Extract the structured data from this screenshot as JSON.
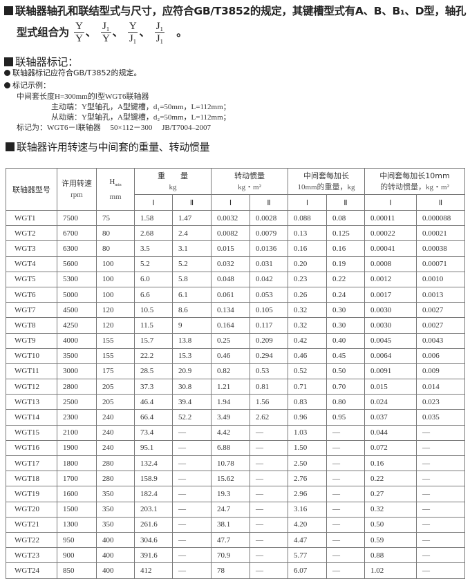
{
  "intro": {
    "line1": "联轴器轴孔和联结型式与尺寸，应符合GB/T3852的规定，其键槽型式有A、B、B₁、D型，轴孔",
    "line2_prefix": "型式组合为",
    "fractions": [
      {
        "num": "Y",
        "den": "Y"
      },
      {
        "num": "J₁",
        "den": "Y"
      },
      {
        "num": "Y",
        "den": "J₁"
      },
      {
        "num": "J₁",
        "den": "J₁"
      }
    ],
    "separator": "、",
    "line2_suffix": "。"
  },
  "marking": {
    "title": "联轴器标记：",
    "bullet1": "联轴器标记应符合GB/T3852的规定。",
    "bullet2": "标记示例：",
    "example_line1": "中间套长度H=300mm的Ⅰ型WGT6联轴器",
    "example_line2": "主动端：Y型轴孔，A型键槽，d₁=50mm，L=112mm；",
    "example_line3": "从动端：Y型轴孔，A型键槽，d₂=50mm，L=112mm；",
    "example_line4": "标记为：WGT6－Ⅰ联轴器　 50×112－300　 JB/T7004–2007"
  },
  "table_section": {
    "title": "联轴器许用转速与中间套的重量、转动惯量",
    "headers": {
      "model": "联轴器型号",
      "speed": "许用转速",
      "speed_unit": "rpm",
      "hmin": "H",
      "hmin_sub": "min",
      "hmin_unit": "mm",
      "weight": "重　　量",
      "weight_unit": "kg",
      "inertia": "转动惯量",
      "inertia_unit": "kg・m²",
      "w10": "中间套每加长",
      "w10_unit": "10mm的重量，kg",
      "i10": "中间套每加长10mm",
      "i10_unit": "的转动惯量，kg・m²",
      "type1": "Ⅰ",
      "type2": "Ⅱ"
    },
    "rows": [
      [
        "WGT1",
        "7500",
        "75",
        "1.58",
        "1.47",
        "0.0032",
        "0.0028",
        "0.088",
        "0.08",
        "0.00011",
        "0.000088"
      ],
      [
        "WGT2",
        "6700",
        "80",
        "2.68",
        "2.4",
        "0.0082",
        "0.0079",
        "0.13",
        "0.125",
        "0.00022",
        "0.00021"
      ],
      [
        "WGT3",
        "6300",
        "80",
        "3.5",
        "3.1",
        "0.015",
        "0.0136",
        "0.16",
        "0.16",
        "0.00041",
        "0.00038"
      ],
      [
        "WGT4",
        "5600",
        "100",
        "5.2",
        "5.2",
        "0.032",
        "0.031",
        "0.20",
        "0.19",
        "0.0008",
        "0.00071"
      ],
      [
        "WGT5",
        "5300",
        "100",
        "6.0",
        "5.8",
        "0.048",
        "0.042",
        "0.23",
        "0.22",
        "0.0012",
        "0.0010"
      ],
      [
        "WGT6",
        "5000",
        "100",
        "6.6",
        "6.1",
        "0.061",
        "0.053",
        "0.26",
        "0.24",
        "0.0017",
        "0.0013"
      ],
      [
        "WGT7",
        "4500",
        "120",
        "10.5",
        "8.6",
        "0.134",
        "0.105",
        "0.32",
        "0.30",
        "0.0030",
        "0.0027"
      ],
      [
        "WGT8",
        "4250",
        "120",
        "11.5",
        "9",
        "0.164",
        "0.117",
        "0.32",
        "0.30",
        "0.0030",
        "0.0027"
      ],
      [
        "WGT9",
        "4000",
        "155",
        "15.7",
        "13.8",
        "0.25",
        "0.209",
        "0.42",
        "0.40",
        "0.0045",
        "0.0043"
      ],
      [
        "WGT10",
        "3500",
        "155",
        "22.2",
        "15.3",
        "0.46",
        "0.294",
        "0.46",
        "0.45",
        "0.0064",
        "0.006"
      ],
      [
        "WGT11",
        "3000",
        "175",
        "28.5",
        "20.9",
        "0.82",
        "0.53",
        "0.52",
        "0.50",
        "0.0091",
        "0.009"
      ],
      [
        "WGT12",
        "2800",
        "205",
        "37.3",
        "30.8",
        "1.21",
        "0.81",
        "0.71",
        "0.70",
        "0.015",
        "0.014"
      ],
      [
        "WGT13",
        "2500",
        "205",
        "46.4",
        "39.4",
        "1.94",
        "1.56",
        "0.83",
        "0.80",
        "0.024",
        "0.023"
      ],
      [
        "WGT14",
        "2300",
        "240",
        "66.4",
        "52.2",
        "3.49",
        "2.62",
        "0.96",
        "0.95",
        "0.037",
        "0.035"
      ],
      [
        "WGT15",
        "2100",
        "240",
        "73.4",
        "—",
        "4.42",
        "—",
        "1.03",
        "—",
        "0.044",
        "—"
      ],
      [
        "WGT16",
        "1900",
        "240",
        "95.1",
        "—",
        "6.88",
        "—",
        "1.50",
        "—",
        "0.072",
        "—"
      ],
      [
        "WGT17",
        "1800",
        "280",
        "132.4",
        "—",
        "10.78",
        "—",
        "2.50",
        "—",
        "0.16",
        "—"
      ],
      [
        "WGT18",
        "1700",
        "280",
        "158.9",
        "—",
        "15.62",
        "—",
        "2.76",
        "—",
        "0.22",
        "—"
      ],
      [
        "WGT19",
        "1600",
        "350",
        "182.4",
        "—",
        "19.3",
        "—",
        "2.96",
        "—",
        "0.27",
        "—"
      ],
      [
        "WGT20",
        "1500",
        "350",
        "203.1",
        "—",
        "24.7",
        "—",
        "3.16",
        "—",
        "0.32",
        "—"
      ],
      [
        "WGT21",
        "1300",
        "350",
        "261.6",
        "—",
        "38.1",
        "—",
        "4.20",
        "—",
        "0.50",
        "—"
      ],
      [
        "WGT22",
        "950",
        "400",
        "304.6",
        "—",
        "47.7",
        "—",
        "4.47",
        "—",
        "0.59",
        "—"
      ],
      [
        "WGT23",
        "900",
        "400",
        "391.6",
        "—",
        "70.9",
        "—",
        "5.77",
        "—",
        "0.88",
        "—"
      ],
      [
        "WGT24",
        "850",
        "400",
        "412",
        "—",
        "78",
        "—",
        "6.07",
        "—",
        "1.02",
        "—"
      ]
    ]
  }
}
